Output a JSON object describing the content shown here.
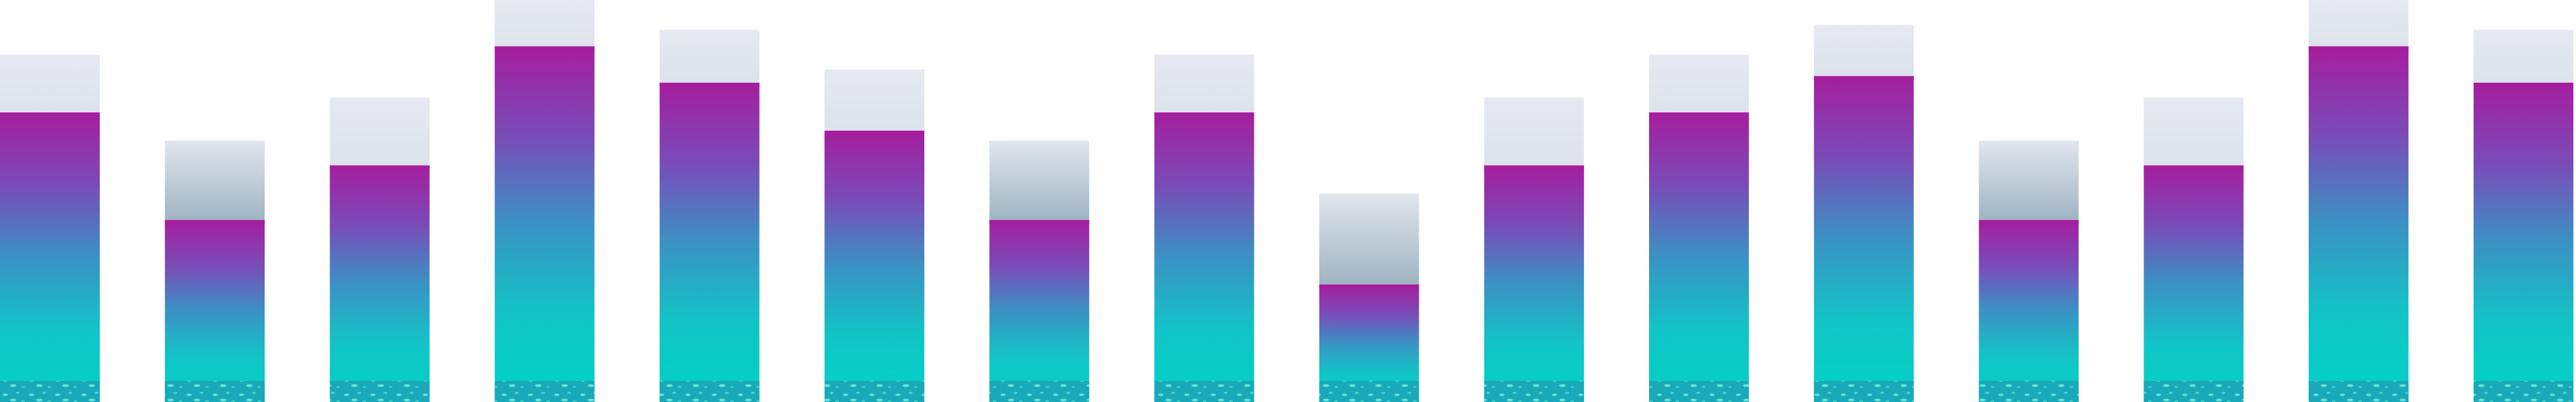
{
  "chart_data": {
    "type": "bar",
    "stacked": true,
    "categories": [
      "",
      "",
      "",
      "",
      "",
      "",
      "",
      "",
      "",
      "",
      "",
      "",
      "",
      "",
      "",
      ""
    ],
    "series": [
      {
        "values": [
          175,
          110,
          143,
          215,
          193,
          164,
          110,
          175,
          71,
          143,
          175,
          197,
          110,
          143,
          215,
          193
        ]
      },
      {
        "values": [
          35,
          48,
          41,
          28,
          32,
          37,
          48,
          35,
          55,
          41,
          35,
          31,
          48,
          41,
          28,
          32
        ]
      }
    ],
    "ylim": [
      0,
      243
    ],
    "grid": false,
    "legend": "none",
    "colors": {
      "base_top": "#a51e9e",
      "base_mid": "#4a86c4",
      "base_bottom": "#00d2c6",
      "base_floor": "#1fa8b6",
      "cap_light": "#e3e6ee",
      "cap_dark": "#9fb3c0"
    }
  }
}
